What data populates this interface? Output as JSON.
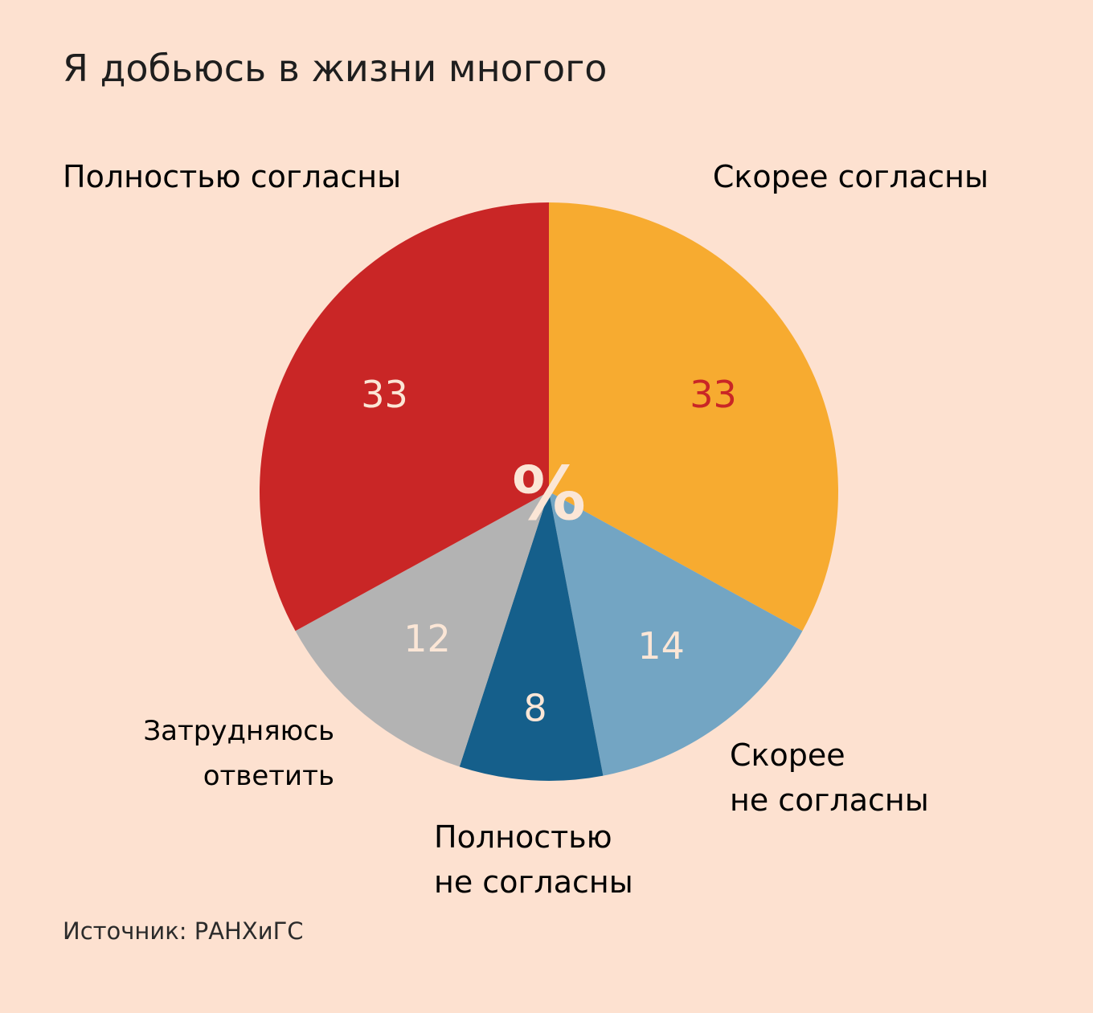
{
  "title": "Я добьюсь в жизни многого",
  "source": "Источник: РАНХиГС",
  "colors": {
    "background": "#fde1d0",
    "fully_agree": "#c92626",
    "rather_agree": "#f7ab30",
    "rather_disagree": "#73a5c3",
    "fully_disagree": "#155f8b",
    "hard_to_say": "#b3b3b3"
  },
  "chart_data": {
    "type": "pie",
    "unit": "%",
    "center_label": "%",
    "slices": [
      {
        "label": "Скорее согласны",
        "value": 33,
        "color": "#f7ab30",
        "label_color": "#e07a7a",
        "value_color": "#c92626"
      },
      {
        "label": "Скорее\nне согласны",
        "value": 14,
        "color": "#73a5c3",
        "label_color": "#73a5c3",
        "value_color": "#fbe6d6"
      },
      {
        "label": "Полностью\nне согласны",
        "value": 8,
        "color": "#155f8b",
        "label_color": "#155f8b",
        "value_color": "#fbe6d6"
      },
      {
        "label": "Затрудняюсь\nответить",
        "value": 12,
        "color": "#b3b3b3",
        "label_color": "#5a4a46",
        "value_color": "#fbe6d6"
      },
      {
        "label": "Полностью согласны",
        "value": 33,
        "color": "#c92626",
        "label_color": "#c92626",
        "value_color": "#fbe6d6"
      }
    ]
  }
}
